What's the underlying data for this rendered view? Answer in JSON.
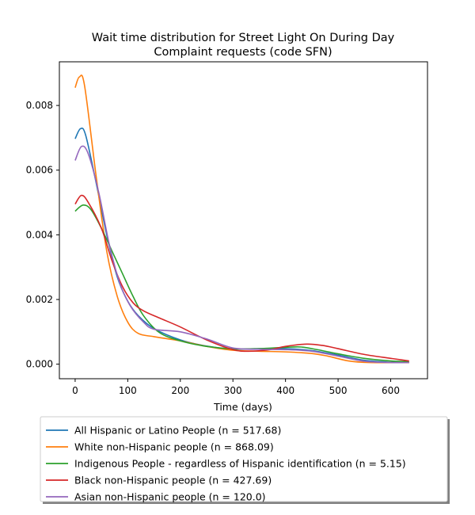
{
  "chart_data": {
    "type": "line",
    "title_lines": [
      "Wait time distribution  for Street Light On During Day",
      "Complaint  requests (code SFN)"
    ],
    "xlabel": "Time (days)",
    "ylabel": "",
    "xlim": [
      -30,
      670
    ],
    "ylim": [
      -0.00045,
      0.00935
    ],
    "x_ticks": [
      0,
      100,
      200,
      300,
      400,
      500,
      600
    ],
    "y_ticks": [
      0.0,
      0.002,
      0.004,
      0.006,
      0.008
    ],
    "y_tick_labels": [
      "0.000",
      "0.002",
      "0.004",
      "0.006",
      "0.008"
    ],
    "grid": false,
    "legend_position": "below the plot",
    "series": [
      {
        "name": "All Hispanic or Latino People (n = 517.68)",
        "color": "#1f77b4",
        "points": [
          [
            0,
            0.00697
          ],
          [
            10,
            0.00728
          ],
          [
            20,
            0.00708
          ],
          [
            40,
            0.0056
          ],
          [
            60,
            0.004
          ],
          [
            80,
            0.0027
          ],
          [
            100,
            0.00195
          ],
          [
            120,
            0.0015
          ],
          [
            150,
            0.0011
          ],
          [
            200,
            0.00075
          ],
          [
            250,
            0.00056
          ],
          [
            300,
            0.00047
          ],
          [
            350,
            0.00048
          ],
          [
            400,
            0.00048
          ],
          [
            450,
            0.00042
          ],
          [
            500,
            0.00028
          ],
          [
            550,
            0.00012
          ],
          [
            600,
            6e-05
          ],
          [
            635,
            5e-05
          ]
        ]
      },
      {
        "name": "White non-Hispanic people (n = 868.09)",
        "color": "#ff7f0e",
        "points": [
          [
            0,
            0.00855
          ],
          [
            8,
            0.00888
          ],
          [
            18,
            0.0086
          ],
          [
            40,
            0.0058
          ],
          [
            60,
            0.0035
          ],
          [
            80,
            0.0021
          ],
          [
            100,
            0.0013
          ],
          [
            120,
            0.00095
          ],
          [
            150,
            0.00085
          ],
          [
            200,
            0.00072
          ],
          [
            250,
            0.00055
          ],
          [
            300,
            0.00043
          ],
          [
            350,
            0.0004
          ],
          [
            400,
            0.00038
          ],
          [
            450,
            0.00033
          ],
          [
            480,
            0.00025
          ],
          [
            520,
            0.0001
          ],
          [
            560,
            5e-05
          ],
          [
            635,
            5e-05
          ]
        ]
      },
      {
        "name": "Indigenous People - regardless of Hispanic identification (n = 5.15)",
        "color": "#2ca02c",
        "points": [
          [
            0,
            0.00473
          ],
          [
            15,
            0.00492
          ],
          [
            30,
            0.00478
          ],
          [
            50,
            0.0042
          ],
          [
            70,
            0.0035
          ],
          [
            90,
            0.0028
          ],
          [
            110,
            0.0021
          ],
          [
            130,
            0.0015
          ],
          [
            160,
            0.00098
          ],
          [
            200,
            0.00072
          ],
          [
            250,
            0.00055
          ],
          [
            300,
            0.00047
          ],
          [
            350,
            0.00048
          ],
          [
            400,
            0.00052
          ],
          [
            430,
            0.00053
          ],
          [
            460,
            0.00045
          ],
          [
            500,
            0.00032
          ],
          [
            550,
            0.00018
          ],
          [
            600,
            0.0001
          ],
          [
            635,
            8e-05
          ]
        ]
      },
      {
        "name": "Black non-Hispanic people (n = 427.69)",
        "color": "#d62728",
        "points": [
          [
            0,
            0.00495
          ],
          [
            12,
            0.00522
          ],
          [
            25,
            0.005
          ],
          [
            50,
            0.0042
          ],
          [
            70,
            0.0032
          ],
          [
            90,
            0.0024
          ],
          [
            110,
            0.0019
          ],
          [
            130,
            0.00165
          ],
          [
            160,
            0.00143
          ],
          [
            200,
            0.00115
          ],
          [
            250,
            0.00075
          ],
          [
            300,
            0.00045
          ],
          [
            330,
            0.0004
          ],
          [
            370,
            0.00045
          ],
          [
            400,
            0.00055
          ],
          [
            440,
            0.00062
          ],
          [
            470,
            0.00058
          ],
          [
            500,
            0.00048
          ],
          [
            550,
            0.0003
          ],
          [
            600,
            0.00018
          ],
          [
            635,
            0.0001
          ]
        ]
      },
      {
        "name": "Asian non-Hispanic people (n = 120.0)",
        "color": "#9467bd",
        "points": [
          [
            0,
            0.0063
          ],
          [
            12,
            0.00673
          ],
          [
            25,
            0.0065
          ],
          [
            45,
            0.0053
          ],
          [
            65,
            0.0037
          ],
          [
            85,
            0.0025
          ],
          [
            105,
            0.0018
          ],
          [
            130,
            0.0013
          ],
          [
            150,
            0.00108
          ],
          [
            200,
            0.001
          ],
          [
            250,
            0.00078
          ],
          [
            300,
            0.0005
          ],
          [
            350,
            0.00046
          ],
          [
            400,
            0.00045
          ],
          [
            450,
            0.0004
          ],
          [
            500,
            0.00025
          ],
          [
            550,
            9e-05
          ],
          [
            600,
            5e-05
          ],
          [
            635,
            5e-05
          ]
        ]
      }
    ]
  }
}
